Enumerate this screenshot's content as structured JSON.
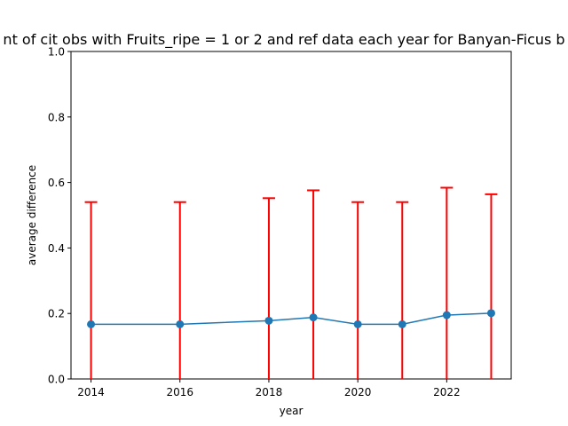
{
  "chart_data": {
    "type": "line",
    "title": "nt of cit obs with Fruits_ripe = 1 or 2 and ref data each year for Banyan-Ficus b",
    "xlabel": "year",
    "ylabel": "average difference",
    "xlim": [
      2013.55,
      2023.45
    ],
    "ylim": [
      0.0,
      1.0
    ],
    "x_ticks": [
      2014,
      2016,
      2018,
      2020,
      2022
    ],
    "y_ticks": [
      0.0,
      0.2,
      0.4,
      0.6,
      0.8,
      1.0
    ],
    "x_tick_labels": [
      "2014",
      "2016",
      "2018",
      "2020",
      "2022"
    ],
    "y_tick_labels": [
      "0.0",
      "0.2",
      "0.4",
      "0.6",
      "0.8",
      "1.0"
    ],
    "grid": false,
    "series": [
      {
        "x": [
          2014,
          2016,
          2018,
          2019,
          2020,
          2021,
          2022,
          2023
        ],
        "y": [
          0.167,
          0.167,
          0.178,
          0.188,
          0.167,
          0.167,
          0.195,
          0.201
        ],
        "error_upper": [
          0.54,
          0.54,
          0.552,
          0.576,
          0.54,
          0.54,
          0.584,
          0.564
        ],
        "error_lower": [
          0.0,
          0.0,
          0.0,
          0.0,
          0.0,
          0.0,
          0.0,
          0.0
        ]
      }
    ],
    "colors": {
      "line": "#1f77b4",
      "marker": "#1f77b4",
      "errorbar": "#ff0000"
    }
  }
}
